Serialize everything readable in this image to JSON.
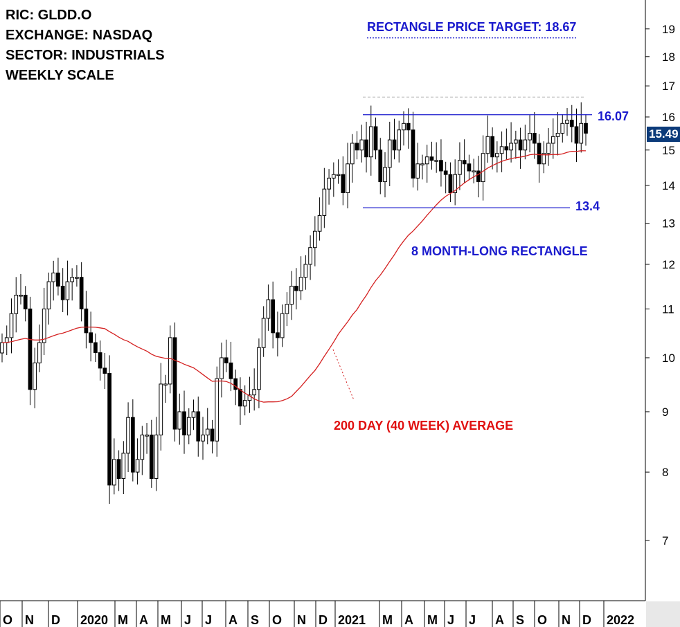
{
  "info": {
    "ric": "RIC: GLDD.O",
    "exchange": "EXCHANGE: NASDAQ",
    "sector": "SECTOR: INDUSTRIALS",
    "scale": "WEEKLY SCALE"
  },
  "annotations": {
    "target": "RECTANGLE PRICE TARGET: 18.67",
    "upper": "16.07",
    "lower": "13.4",
    "rectangle": "8 MONTH-LONG RECTANGLE",
    "ma": "200 DAY  (40 WEEK) AVERAGE",
    "last_price": "15.49"
  },
  "colors": {
    "rectangle_lines": "#1a1acd",
    "moving_average": "#d42020",
    "candle_down": "#000000",
    "candle_up": "#ffffff",
    "price_tag": "#0c3b7a"
  },
  "chart_data": {
    "type": "candlestick",
    "scale": "log",
    "ylim": [
      6.3,
      20.0
    ],
    "y_ticks": [
      7,
      8,
      9,
      10,
      11,
      12,
      13,
      14,
      15,
      16,
      17,
      18,
      19
    ],
    "x_ticks": [
      "O",
      "N",
      "D",
      "2020",
      "M",
      "A",
      "M",
      "J",
      "J",
      "A",
      "S",
      "O",
      "N",
      "D",
      "2021",
      "M",
      "A",
      "M",
      "J",
      "J",
      "A",
      "S",
      "O",
      "N",
      "D",
      "2022"
    ],
    "levels": {
      "resistance": 16.07,
      "support": 13.4,
      "target": 18.67,
      "last": 15.49
    },
    "close": [
      10.3,
      10.4,
      10.9,
      11.3,
      11.3,
      11.0,
      9.4,
      9.9,
      10.3,
      11.0,
      11.6,
      11.8,
      11.5,
      11.2,
      11.6,
      11.7,
      11.7,
      11.0,
      10.5,
      10.3,
      10.1,
      9.8,
      9.7,
      7.8,
      8.2,
      7.9,
      8.3,
      8.9,
      8.0,
      8.2,
      8.6,
      8.6,
      7.9,
      8.6,
      9.5,
      9.5,
      10.4,
      8.7,
      9.0,
      8.6,
      8.9,
      9.0,
      8.5,
      8.6,
      8.7,
      8.5,
      9.6,
      10.0,
      9.9,
      9.6,
      9.4,
      9.1,
      9.2,
      9.3,
      9.4,
      10.2,
      10.8,
      11.2,
      10.5,
      10.4,
      10.9,
      11.1,
      11.5,
      11.4,
      11.7,
      12.0,
      12.4,
      12.8,
      13.2,
      13.9,
      14.2,
      14.3,
      14.3,
      13.8,
      14.6,
      15.2,
      15.0,
      15.3,
      14.8,
      15.7,
      15.0,
      14.1,
      14.5,
      15.3,
      15.0,
      15.6,
      15.8,
      15.6,
      14.2,
      14.6,
      14.6,
      14.8,
      14.7,
      14.7,
      14.4,
      14.3,
      13.8,
      14.3,
      14.7,
      14.6,
      14.4,
      14.4,
      14.1,
      14.9,
      15.4,
      14.8,
      14.9,
      15.1,
      15.0,
      15.2,
      15.3,
      15.0,
      15.3,
      15.5,
      15.2,
      14.6,
      14.9,
      15.2,
      15.4,
      15.5,
      15.8,
      15.9,
      15.7,
      15.2,
      15.8,
      15.5
    ]
  }
}
